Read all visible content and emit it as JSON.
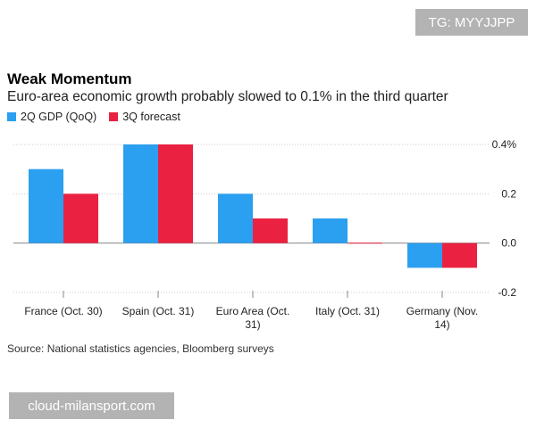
{
  "watermarks": {
    "top": "TG: MYYJJPP",
    "bottom": "cloud-milansport.com"
  },
  "header": {
    "title": "Weak Momentum",
    "subtitle": "Euro-area economic growth probably slowed to 0.1% in the third quarter"
  },
  "source": "Source: National statistics agencies, Bloomberg surveys",
  "colors": {
    "series1": "#2b9ff0",
    "series2": "#eb2141",
    "grid": "#cccccc",
    "zero": "#888888"
  },
  "chart_data": {
    "type": "bar",
    "title": "Weak Momentum",
    "subtitle": "Euro-area economic growth probably slowed to 0.1% in the third quarter",
    "xlabel": "",
    "ylabel": "",
    "categories": [
      [
        "France (Oct. 30)"
      ],
      [
        "Spain (Oct. 31)"
      ],
      [
        "Euro Area (Oct.",
        "31)"
      ],
      [
        "Italy (Oct. 31)"
      ],
      [
        "Germany (Nov.",
        "14)"
      ]
    ],
    "series": [
      {
        "name": "2Q GDP (QoQ)",
        "values": [
          0.3,
          0.4,
          0.2,
          0.1,
          -0.1
        ]
      },
      {
        "name": "3Q forecast",
        "values": [
          0.2,
          0.4,
          0.1,
          0.0,
          -0.1
        ]
      }
    ],
    "ylim": [
      -0.2,
      0.4
    ],
    "yticks": [
      {
        "value": 0.4,
        "label": "0.4%"
      },
      {
        "value": 0.2,
        "label": "0.2"
      },
      {
        "value": 0.0,
        "label": "0.0"
      },
      {
        "value": -0.2,
        "label": "-0.2"
      }
    ],
    "grid": true,
    "legend_position": "top-left"
  }
}
